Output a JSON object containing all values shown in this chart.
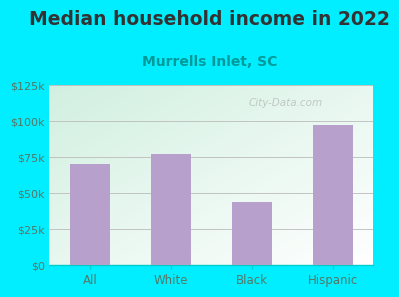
{
  "title": "Median household income in 2022",
  "subtitle": "Murrells Inlet, SC",
  "categories": [
    "All",
    "White",
    "Black",
    "Hispanic"
  ],
  "values": [
    70000,
    77000,
    44000,
    97000
  ],
  "bar_color": "#b8a0cc",
  "background_outer": "#00eeff",
  "background_plot_left": "#cceedd",
  "background_plot_right": "#eeffee",
  "title_fontsize": 13.5,
  "title_color": "#333333",
  "subtitle_fontsize": 10,
  "subtitle_color": "#009999",
  "tick_label_color": "#557766",
  "ylim": [
    0,
    125000
  ],
  "yticks": [
    0,
    25000,
    50000,
    75000,
    100000,
    125000
  ],
  "ytick_labels": [
    "$0",
    "$25k",
    "$50k",
    "$75k",
    "$100k",
    "$125k"
  ],
  "watermark": "City-Data.com"
}
